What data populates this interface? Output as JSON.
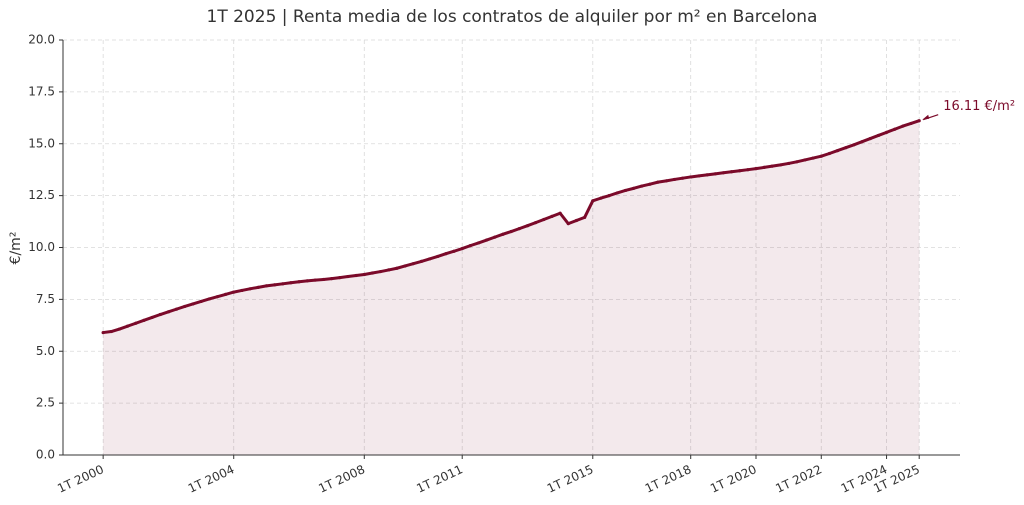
{
  "chart_data": {
    "type": "line",
    "title": "1T 2025 | Renta media de los contratos de alquiler por m² en Barcelona",
    "y_label": "€/m²",
    "annotation": "16.11 €/m²",
    "color": "#7b0a2a",
    "fill": true,
    "grid": true,
    "x": [
      2000,
      2000.25,
      2000.5,
      2000.75,
      2001,
      2001.25,
      2001.5,
      2001.75,
      2002,
      2002.25,
      2002.5,
      2002.75,
      2003,
      2003.25,
      2003.5,
      2003.75,
      2004,
      2004.25,
      2004.5,
      2004.75,
      2005,
      2005.25,
      2005.5,
      2005.75,
      2006,
      2006.25,
      2006.5,
      2006.75,
      2007,
      2007.25,
      2007.5,
      2007.75,
      2008,
      2008.25,
      2008.5,
      2008.75,
      2009,
      2009.25,
      2009.5,
      2009.75,
      2010,
      2010.25,
      2010.5,
      2010.75,
      2011,
      2011.25,
      2011.5,
      2011.75,
      2012,
      2012.25,
      2012.5,
      2012.75,
      2013,
      2013.25,
      2013.5,
      2013.75,
      2014,
      2014.25,
      2014.5,
      2014.75,
      2015,
      2015.25,
      2015.5,
      2015.75,
      2016,
      2016.25,
      2016.5,
      2016.75,
      2017,
      2017.25,
      2017.5,
      2017.75,
      2018,
      2018.25,
      2018.5,
      2018.75,
      2019,
      2019.25,
      2019.5,
      2019.75,
      2020,
      2020.25,
      2020.5,
      2020.75,
      2021,
      2021.25,
      2021.5,
      2021.75,
      2022,
      2022.25,
      2022.5,
      2022.75,
      2023,
      2023.25,
      2023.5,
      2023.75,
      2024,
      2024.25,
      2024.5,
      2024.75,
      2025
    ],
    "values": [
      5.9,
      5.95,
      6.07,
      6.21,
      6.35,
      6.49,
      6.63,
      6.77,
      6.9,
      7.03,
      7.16,
      7.28,
      7.4,
      7.52,
      7.63,
      7.74,
      7.85,
      7.93,
      8.01,
      8.08,
      8.15,
      8.2,
      8.25,
      8.3,
      8.35,
      8.39,
      8.43,
      8.46,
      8.5,
      8.55,
      8.6,
      8.65,
      8.7,
      8.77,
      8.84,
      8.92,
      9.0,
      9.11,
      9.22,
      9.33,
      9.45,
      9.57,
      9.7,
      9.82,
      9.95,
      10.09,
      10.22,
      10.36,
      10.5,
      10.64,
      10.77,
      10.91,
      11.05,
      11.2,
      11.35,
      11.5,
      11.65,
      11.15,
      11.3,
      11.45,
      12.25,
      12.38,
      12.5,
      12.63,
      12.75,
      12.85,
      12.96,
      13.05,
      13.15,
      13.21,
      13.28,
      13.34,
      13.4,
      13.45,
      13.5,
      13.55,
      13.6,
      13.65,
      13.7,
      13.75,
      13.8,
      13.86,
      13.92,
      13.98,
      14.05,
      14.13,
      14.22,
      14.31,
      14.4,
      14.53,
      14.67,
      14.81,
      14.95,
      15.1,
      15.25,
      15.4,
      15.55,
      15.7,
      15.85,
      15.98,
      16.11
    ],
    "xlim": [
      1998.77,
      2026.25
    ],
    "xticks": [
      {
        "value": 2000,
        "label": "1T 2000"
      },
      {
        "value": 2004,
        "label": "1T 2004"
      },
      {
        "value": 2008,
        "label": "1T 2008"
      },
      {
        "value": 2011,
        "label": "1T 2011"
      },
      {
        "value": 2015,
        "label": "1T 2015"
      },
      {
        "value": 2018,
        "label": "1T 2018"
      },
      {
        "value": 2020,
        "label": "1T 2020"
      },
      {
        "value": 2022,
        "label": "1T 2022"
      },
      {
        "value": 2024,
        "label": "1T 2024"
      },
      {
        "value": 2025,
        "label": "1T 2025"
      }
    ],
    "ylim": [
      0,
      20
    ],
    "yticks": [
      {
        "value": 0,
        "label": "0.0"
      },
      2.5,
      {
        "value": 5,
        "label": "5.0"
      },
      7.5,
      {
        "value": 10,
        "label": "10.0"
      },
      12.5,
      {
        "value": 15,
        "label": "15.0"
      },
      17.5,
      {
        "value": 20,
        "label": "20.0"
      }
    ]
  }
}
